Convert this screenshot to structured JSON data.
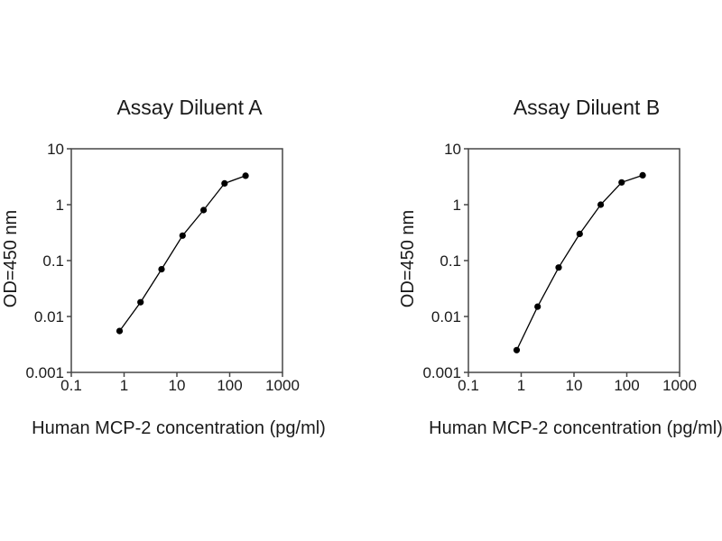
{
  "page": {
    "background": "#ffffff"
  },
  "colors": {
    "text": "#1a1a1a",
    "axis": "#474747",
    "series": "#000000",
    "background": "#ffffff"
  },
  "chart_data": [
    {
      "type": "line",
      "title": "Assay Diluent A",
      "xlabel": "Human MCP-2 concentration (pg/ml)",
      "ylabel": "OD=450 nm",
      "xscale": "log",
      "yscale": "log",
      "xlim": [
        0.1,
        1000
      ],
      "ylim": [
        0.001,
        10
      ],
      "xticks": [
        0.1,
        1,
        10,
        100,
        1000
      ],
      "yticks": [
        10,
        1,
        0.1,
        0.01,
        0.001
      ],
      "xtick_labels": [
        "0.1",
        "1",
        "10",
        "100",
        "1000"
      ],
      "ytick_labels": [
        "10",
        "1",
        "0.1",
        "0.01",
        "0.001"
      ],
      "grid": false,
      "legend": null,
      "marker": "filled-circle",
      "line_color": "#000000",
      "marker_color": "#000000",
      "points": [
        {
          "x": 0.82,
          "y": 0.0055
        },
        {
          "x": 2.05,
          "y": 0.018
        },
        {
          "x": 5.12,
          "y": 0.07
        },
        {
          "x": 12.8,
          "y": 0.28
        },
        {
          "x": 32,
          "y": 0.8
        },
        {
          "x": 80,
          "y": 2.4
        },
        {
          "x": 200,
          "y": 3.3
        }
      ]
    },
    {
      "type": "line",
      "title": "Assay Diluent B",
      "xlabel": "Human MCP-2 concentration (pg/ml)",
      "ylabel": "OD=450 nm",
      "xscale": "log",
      "yscale": "log",
      "xlim": [
        0.1,
        1000
      ],
      "ylim": [
        0.001,
        10
      ],
      "xticks": [
        0.1,
        1,
        10,
        100,
        1000
      ],
      "yticks": [
        10,
        1,
        0.1,
        0.01,
        0.001
      ],
      "xtick_labels": [
        "0.1",
        "1",
        "10",
        "100",
        "1000"
      ],
      "ytick_labels": [
        "10",
        "1",
        "0.1",
        "0.01",
        "0.001"
      ],
      "grid": false,
      "legend": null,
      "marker": "filled-circle",
      "line_color": "#000000",
      "marker_color": "#000000",
      "points": [
        {
          "x": 0.82,
          "y": 0.0025
        },
        {
          "x": 2.05,
          "y": 0.015
        },
        {
          "x": 5.12,
          "y": 0.075
        },
        {
          "x": 12.8,
          "y": 0.3
        },
        {
          "x": 32,
          "y": 1.0
        },
        {
          "x": 80,
          "y": 2.5
        },
        {
          "x": 200,
          "y": 3.35
        }
      ]
    }
  ]
}
